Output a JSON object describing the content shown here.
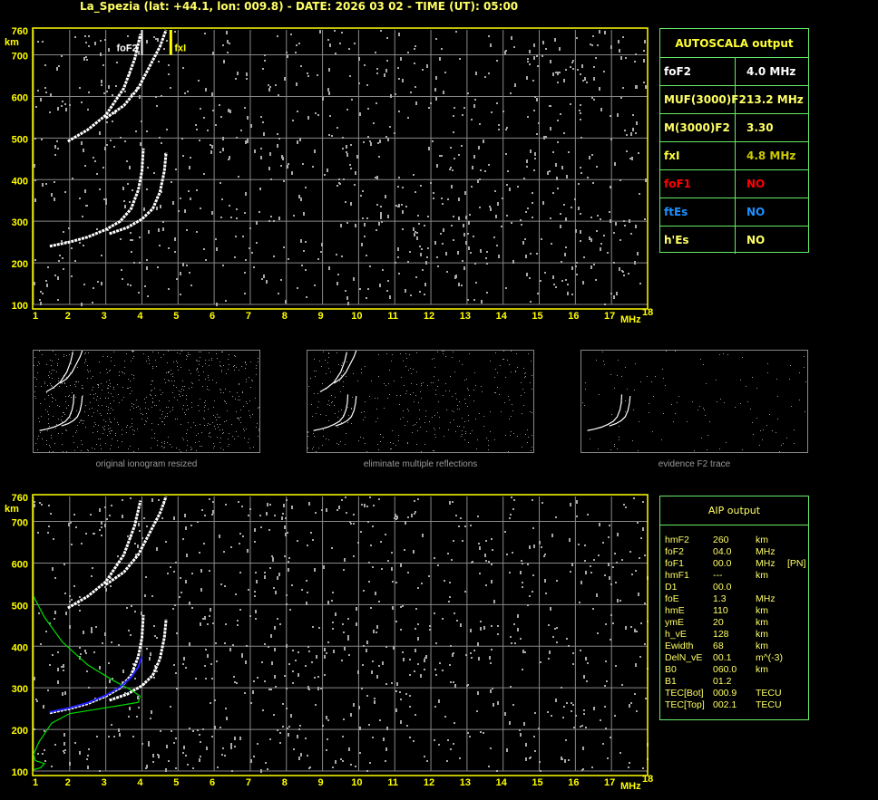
{
  "title": "La_Spezia (lat: +44.1, lon: 009.8) - DATE: 2026 03 02 - TIME (UT): 05:00",
  "chart_data": [
    {
      "type": "scatter",
      "name_id": "ionogram-autoscala",
      "xlabel": "MHz",
      "ylabel": "km",
      "xlim": [
        1,
        18
      ],
      "ylim": [
        100,
        760
      ],
      "xticks": [
        1,
        2,
        3,
        4,
        5,
        6,
        7,
        8,
        9,
        10,
        11,
        12,
        13,
        14,
        15,
        16,
        17,
        18
      ],
      "yticks": [
        100,
        200,
        300,
        400,
        500,
        600,
        700,
        760
      ],
      "grid": true,
      "markers": [
        {
          "label": "foF2",
          "x": 4.0,
          "color": "#ffffff"
        },
        {
          "label": "fxI",
          "x": 4.8,
          "color": "#ffff00"
        }
      ],
      "traces": [
        {
          "mode": "o",
          "points": [
            [
              1.45,
              240
            ],
            [
              2.0,
              250
            ],
            [
              2.5,
              262
            ],
            [
              3.0,
              280
            ],
            [
              3.4,
              300
            ],
            [
              3.7,
              330
            ],
            [
              3.9,
              375
            ],
            [
              4.0,
              420
            ],
            [
              4.04,
              475
            ]
          ]
        },
        {
          "mode": "x",
          "points": [
            [
              3.1,
              270
            ],
            [
              3.6,
              285
            ],
            [
              4.0,
              305
            ],
            [
              4.3,
              330
            ],
            [
              4.5,
              370
            ],
            [
              4.62,
              420
            ],
            [
              4.67,
              465
            ]
          ]
        },
        {
          "mode": "o2",
          "points": [
            [
              1.95,
              492
            ],
            [
              2.5,
              520
            ],
            [
              3.0,
              555
            ],
            [
              3.5,
              620
            ],
            [
              3.8,
              690
            ],
            [
              3.96,
              750
            ]
          ]
        },
        {
          "mode": "x2",
          "points": [
            [
              3.0,
              548
            ],
            [
              3.5,
              578
            ],
            [
              3.9,
              620
            ],
            [
              4.2,
              670
            ],
            [
              4.5,
              720
            ],
            [
              4.67,
              760
            ]
          ]
        }
      ]
    },
    {
      "type": "scatter",
      "name_id": "ionogram-aip",
      "xlabel": "MHz",
      "ylabel": "km",
      "xlim": [
        1,
        18
      ],
      "ylim": [
        100,
        760
      ],
      "xticks": [
        1,
        2,
        3,
        4,
        5,
        6,
        7,
        8,
        9,
        10,
        11,
        12,
        13,
        14,
        15,
        16,
        17,
        18
      ],
      "yticks": [
        100,
        200,
        300,
        400,
        500,
        600,
        700,
        760
      ],
      "grid": true,
      "profile": {
        "color": "#00dd00",
        "points": [
          [
            1.0,
            520
          ],
          [
            1.3,
            470
          ],
          [
            1.8,
            410
          ],
          [
            2.5,
            355
          ],
          [
            3.2,
            318
          ],
          [
            3.7,
            295
          ],
          [
            3.95,
            280
          ],
          [
            3.9,
            265
          ],
          [
            3.0,
            252
          ],
          [
            2.0,
            238
          ],
          [
            1.5,
            215
          ],
          [
            1.15,
            170
          ],
          [
            1.0,
            140
          ],
          [
            1.05,
            125
          ],
          [
            1.3,
            118
          ],
          [
            1.2,
            108
          ],
          [
            1.0,
            103
          ]
        ]
      },
      "fitted_trace": {
        "color": "#2222ff",
        "points": [
          [
            1.45,
            242
          ],
          [
            2.0,
            252
          ],
          [
            2.5,
            264
          ],
          [
            3.0,
            282
          ],
          [
            3.4,
            302
          ],
          [
            3.7,
            325
          ],
          [
            3.9,
            350
          ],
          [
            4.0,
            375
          ]
        ]
      }
    }
  ],
  "thumbnails": [
    {
      "caption": "original ionogram resized"
    },
    {
      "caption": "eliminate multiple reflections"
    },
    {
      "caption": "evidence F2 trace"
    }
  ],
  "autoscala": {
    "title": "AUTOSCALA output",
    "rows": [
      {
        "key": "foF2",
        "value": "4.0 MHz",
        "color": "#ffffff",
        "vcolor": "#ffffff"
      },
      {
        "key": "MUF(3000)F2",
        "value": "13.2 MHz",
        "color": "#ffff66",
        "vcolor": "#ffff66"
      },
      {
        "key": "M(3000)F2",
        "value": "3.30",
        "color": "#ffff66",
        "vcolor": "#ffff66"
      },
      {
        "key": "fxI",
        "value": "4.8 MHz",
        "color": "#ffff33",
        "vcolor": "#cccc00"
      },
      {
        "key": "foF1",
        "value": "NO",
        "color": "#ff0000",
        "vcolor": "#ff0000"
      },
      {
        "key": "ftEs",
        "value": "NO",
        "color": "#1e90ff",
        "vcolor": "#1e90ff"
      },
      {
        "key": "h'Es",
        "value": "NO",
        "color": "#ffff66",
        "vcolor": "#ffff66"
      }
    ]
  },
  "aip": {
    "title": "AIP output",
    "rows": [
      [
        "hmF2",
        "260",
        "km",
        ""
      ],
      [
        "foF2",
        "04.0",
        "MHz",
        ""
      ],
      [
        "foF1",
        "00.0",
        "MHz",
        "[PN]"
      ],
      [
        "hmF1",
        "---",
        "km",
        ""
      ],
      [
        "D1",
        "00.0",
        "",
        ""
      ],
      [
        "foE",
        "1.3",
        "MHz",
        ""
      ],
      [
        "hmE",
        "110",
        "km",
        ""
      ],
      [
        "ymE",
        "20",
        "km",
        ""
      ],
      [
        "h_vE",
        "128",
        "km",
        ""
      ],
      [
        "Ewidth",
        "68",
        "km",
        ""
      ],
      [
        "DelN_vE",
        "00.1",
        "m^(-3)",
        ""
      ],
      [
        "B0",
        "060.0",
        "km",
        ""
      ],
      [
        "B1",
        "01.2",
        "",
        ""
      ],
      [
        "TEC[Bot]",
        "000.9",
        "TECU",
        ""
      ],
      [
        "TEC[Top]",
        "002.1",
        "TECU",
        ""
      ]
    ]
  },
  "colors": {
    "axis": "#ffff00",
    "grid": "#888888",
    "trace": "#ffffff",
    "noise": "#aaaaaa"
  }
}
